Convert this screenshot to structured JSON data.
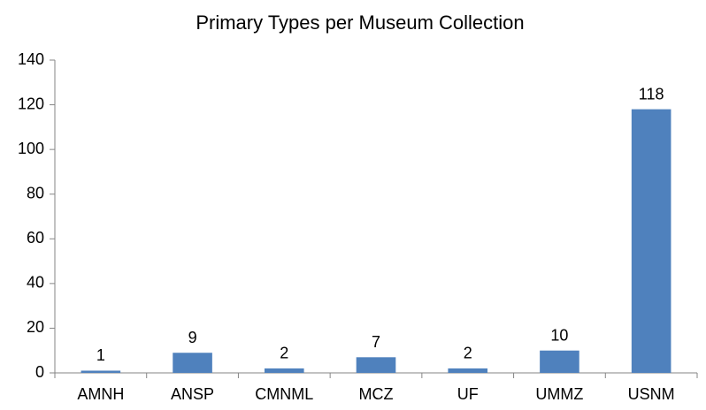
{
  "chart_data": {
    "type": "bar",
    "title": "Primary Types per Museum Collection",
    "categories": [
      "AMNH",
      "ANSP",
      "CMNML",
      "MCZ",
      "UF",
      "UMMZ",
      "USNM"
    ],
    "values": [
      1,
      9,
      2,
      7,
      2,
      10,
      118
    ],
    "color": "#4f81bd",
    "ylim": [
      0,
      140
    ],
    "yticks": [
      0,
      20,
      40,
      60,
      80,
      100,
      120,
      140
    ],
    "grid": false
  }
}
